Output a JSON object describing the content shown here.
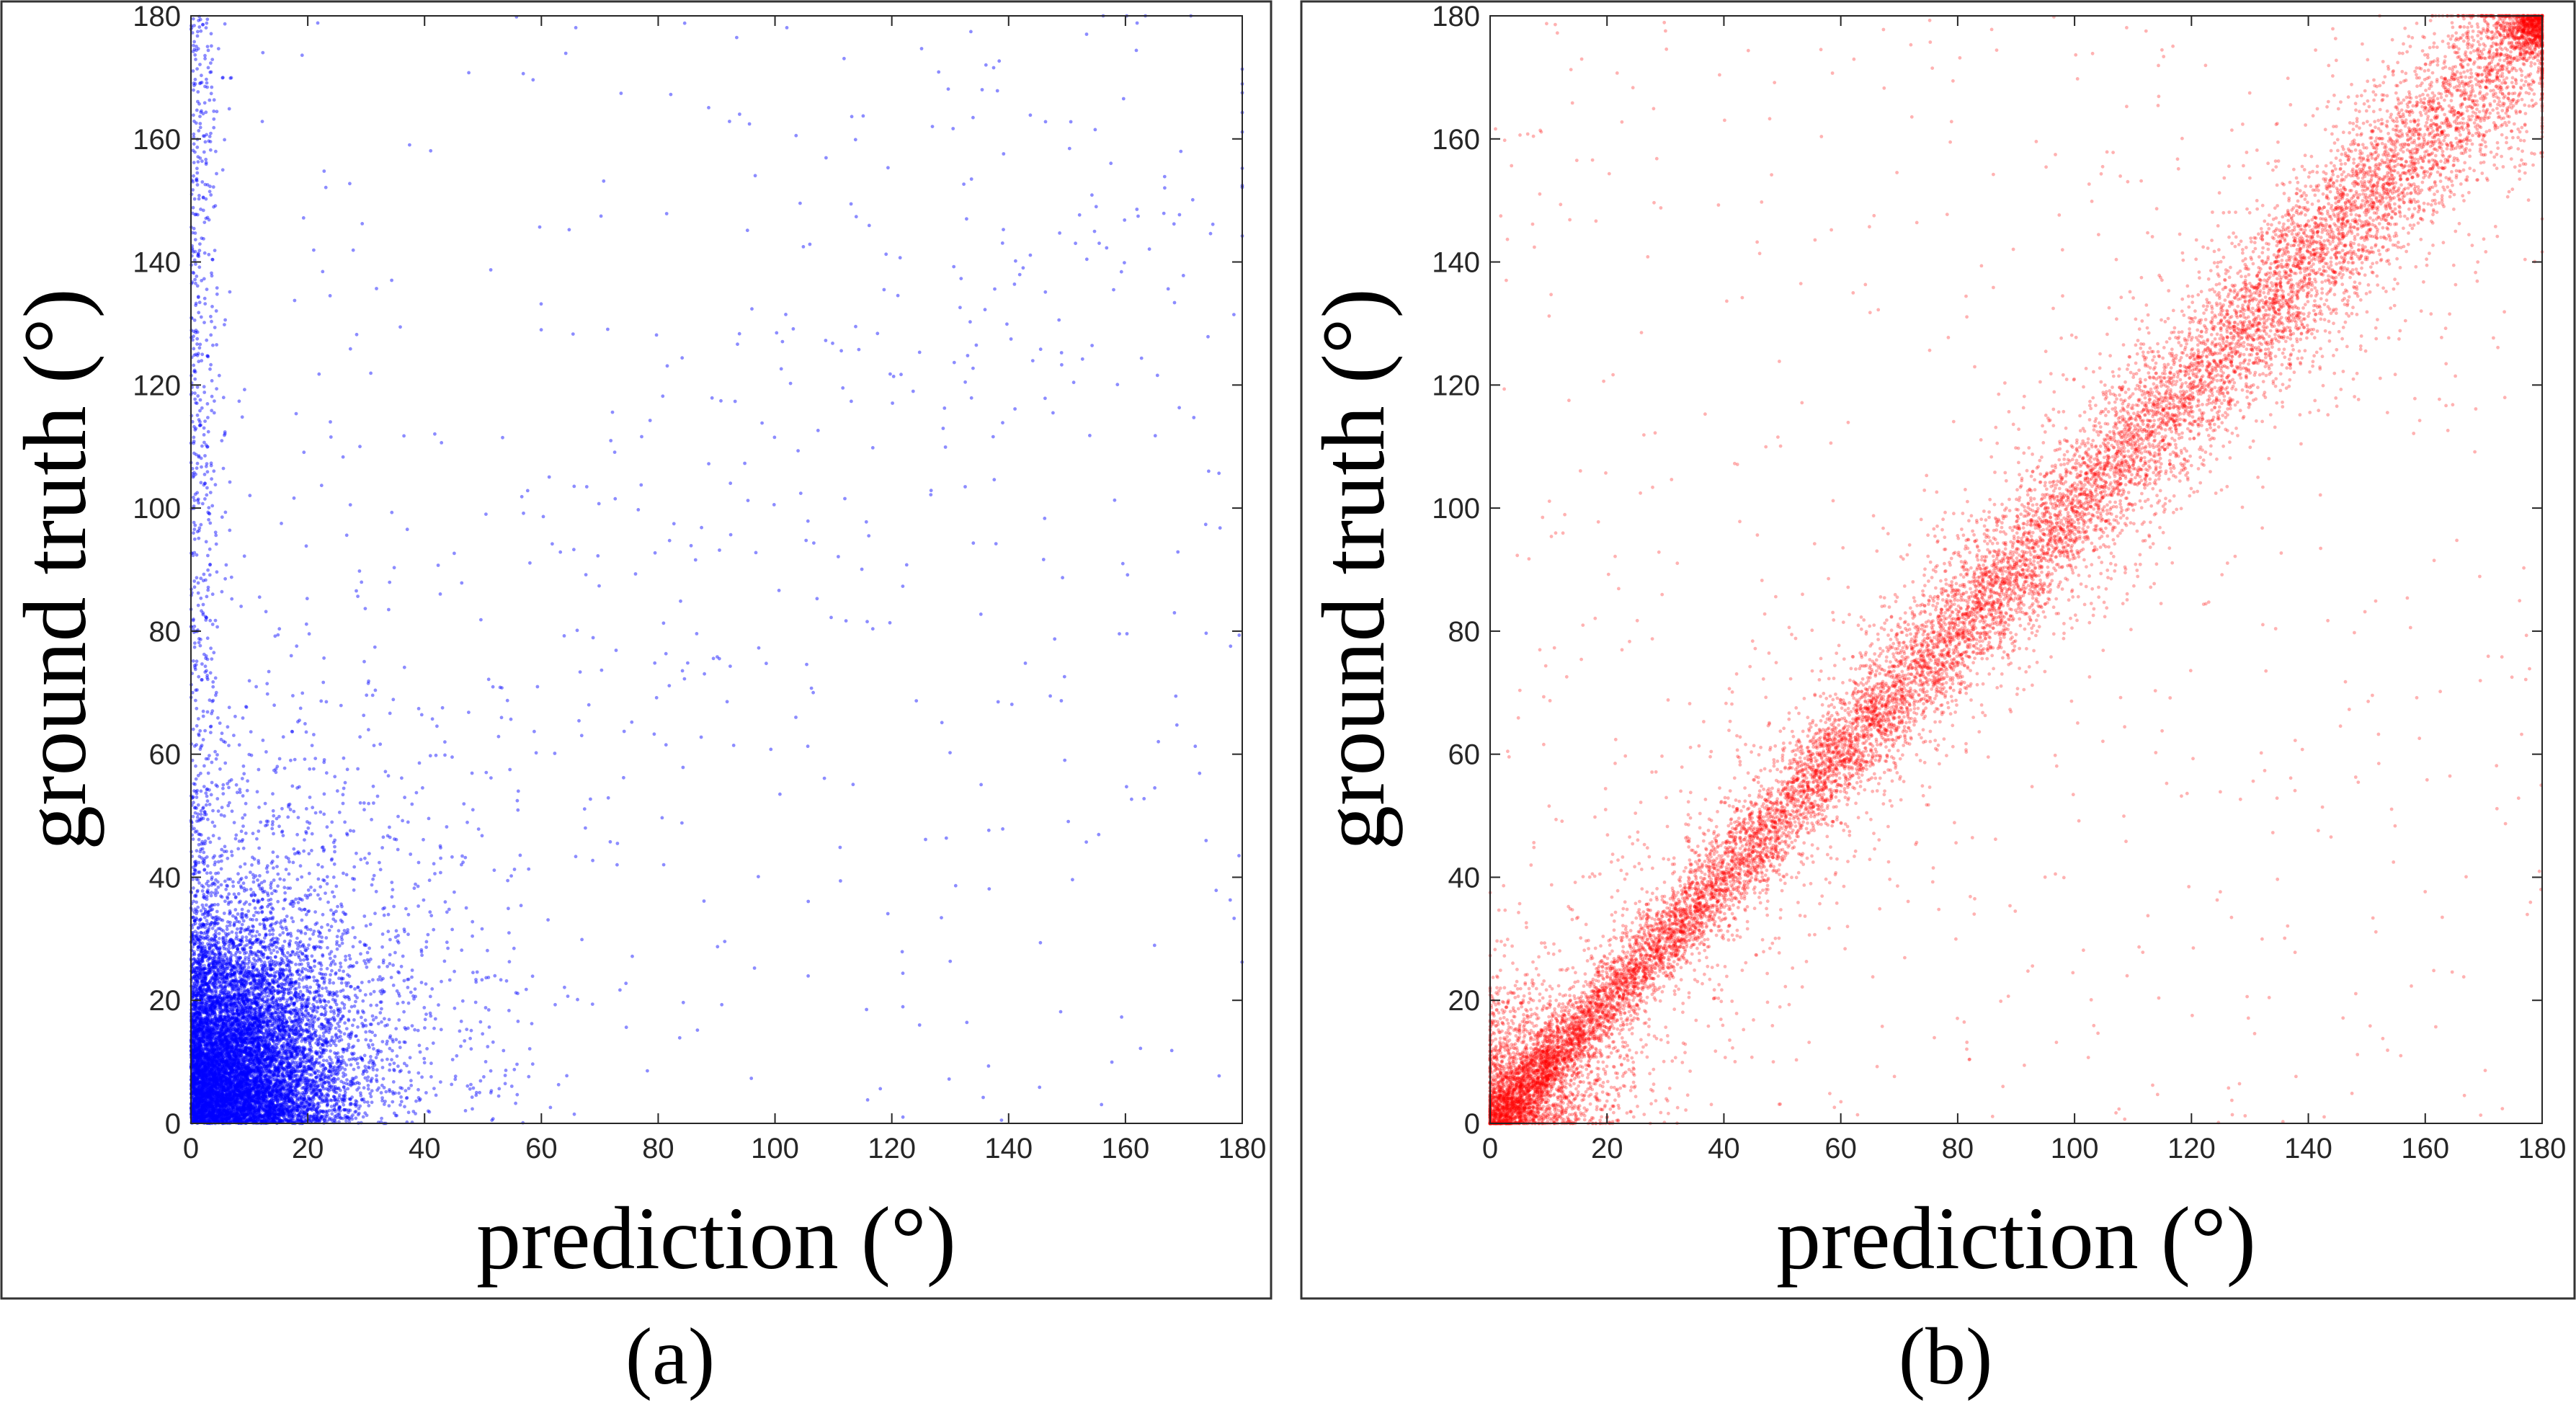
{
  "chart_data": [
    {
      "type": "scatter",
      "panel_label": "(a)",
      "xlabel": "prediction (°)",
      "ylabel": "ground truth (°)",
      "xlim": [
        0,
        180
      ],
      "ylim": [
        0,
        180
      ],
      "xticks": [
        "0",
        "20",
        "40",
        "60",
        "80",
        "100",
        "120",
        "140",
        "160",
        "180"
      ],
      "yticks": [
        "0",
        "20",
        "40",
        "60",
        "80",
        "100",
        "120",
        "140",
        "160",
        "180"
      ],
      "grid": false,
      "point_color": "#0000ff",
      "distribution": {
        "dense_cluster": {
          "x_range": [
            0,
            30
          ],
          "y_range": [
            0,
            40
          ],
          "center": [
            10,
            12
          ]
        },
        "spread": "mass concentrated near the origin; vertical band along x≈0 up to 180; sparse points elsewhere",
        "x_typical": [
          0,
          40
        ],
        "y_typical": [
          0,
          60
        ]
      },
      "sample_points": [
        [
          2,
          180
        ],
        [
          3,
          165
        ],
        [
          5,
          150
        ],
        [
          4,
          120
        ],
        [
          2,
          100
        ],
        [
          6,
          90
        ],
        [
          10,
          70
        ],
        [
          20,
          60
        ],
        [
          30,
          55
        ],
        [
          50,
          55
        ],
        [
          60,
          45
        ],
        [
          70,
          35
        ],
        [
          80,
          25
        ],
        [
          100,
          10
        ],
        [
          120,
          20
        ],
        [
          140,
          25
        ],
        [
          160,
          60
        ],
        [
          175,
          170
        ],
        [
          170,
          175
        ],
        [
          178,
          145
        ],
        [
          90,
          120
        ],
        [
          110,
          135
        ],
        [
          130,
          130
        ],
        [
          45,
          150
        ]
      ]
    },
    {
      "type": "scatter",
      "panel_label": "(b)",
      "xlabel": "prediction (°)",
      "ylabel": "ground truth (°)",
      "xlim": [
        0,
        180
      ],
      "ylim": [
        0,
        180
      ],
      "xticks": [
        "0",
        "20",
        "40",
        "60",
        "80",
        "100",
        "120",
        "140",
        "160",
        "180"
      ],
      "yticks": [
        "0",
        "20",
        "40",
        "60",
        "80",
        "100",
        "120",
        "140",
        "160",
        "180"
      ],
      "grid": false,
      "point_color": "#ff0000",
      "distribution": {
        "trend": "points tightly concentrated along the diagonal y = x from 0 to 180",
        "diagonal_spread_deg": 6,
        "dense_corner_clusters": [
          [
            0,
            0
          ],
          [
            180,
            180
          ]
        ],
        "outliers": "sparse points scattered uniformly over the full 0–180 square"
      },
      "sample_points": [
        [
          0,
          0
        ],
        [
          20,
          20
        ],
        [
          40,
          40
        ],
        [
          60,
          60
        ],
        [
          80,
          80
        ],
        [
          100,
          100
        ],
        [
          120,
          120
        ],
        [
          140,
          140
        ],
        [
          160,
          160
        ],
        [
          180,
          180
        ],
        [
          20,
          120
        ],
        [
          40,
          160
        ],
        [
          60,
          10
        ],
        [
          100,
          40
        ],
        [
          140,
          20
        ],
        [
          160,
          100
        ],
        [
          10,
          140
        ],
        [
          120,
          170
        ],
        [
          170,
          30
        ],
        [
          30,
          80
        ]
      ]
    }
  ]
}
